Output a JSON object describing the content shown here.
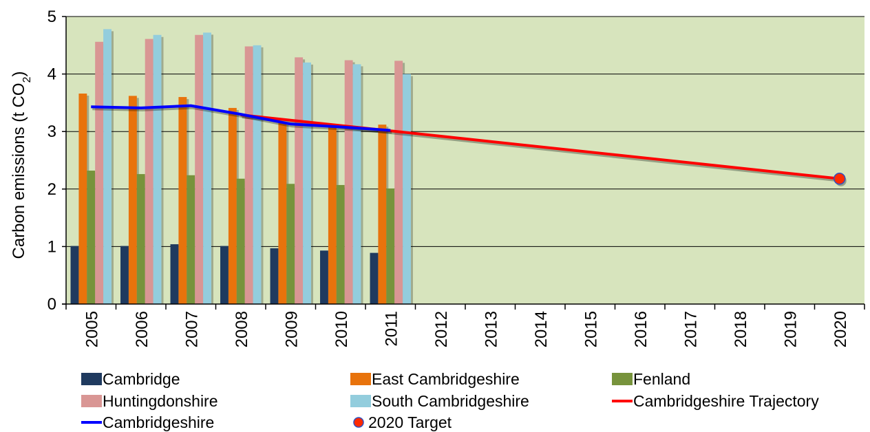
{
  "chart_data": {
    "type": "bar",
    "title": "",
    "xlabel": "",
    "ylabel": {
      "prefix": "Carbon emissions (t CO",
      "sub": "2",
      "suffix": ")"
    },
    "ylim": [
      0,
      5
    ],
    "yticks": [
      0,
      1,
      2,
      3,
      4,
      5
    ],
    "grid": "horizontal",
    "legend_position": "bottom",
    "categories": [
      "2005",
      "2006",
      "2007",
      "2008",
      "2009",
      "2010",
      "2011",
      "2012",
      "2013",
      "2014",
      "2015",
      "2016",
      "2017",
      "2018",
      "2019",
      "2020"
    ],
    "bar_series": [
      {
        "name": "Cambridge",
        "color": "#1f3a5f",
        "values": [
          1.01,
          1.01,
          1.04,
          1.01,
          0.97,
          0.93,
          0.89,
          null,
          null,
          null,
          null,
          null,
          null,
          null,
          null,
          null
        ]
      },
      {
        "name": "East Cambridgeshire",
        "color": "#e8730c",
        "values": [
          3.66,
          3.62,
          3.6,
          3.41,
          3.15,
          3.07,
          3.12,
          null,
          null,
          null,
          null,
          null,
          null,
          null,
          null,
          null
        ]
      },
      {
        "name": "Fenland",
        "color": "#77933c",
        "values": [
          2.32,
          2.26,
          2.24,
          2.18,
          2.09,
          2.07,
          2.01,
          null,
          null,
          null,
          null,
          null,
          null,
          null,
          null,
          null
        ]
      },
      {
        "name": "Huntingdonshire",
        "color": "#d99694",
        "values": [
          4.56,
          4.61,
          4.68,
          4.48,
          4.29,
          4.24,
          4.23,
          null,
          null,
          null,
          null,
          null,
          null,
          null,
          null,
          null
        ]
      },
      {
        "name": "South Cambridgeshire",
        "color": "#93cddd",
        "values": [
          4.78,
          4.68,
          4.72,
          4.5,
          4.2,
          4.17,
          4.0,
          null,
          null,
          null,
          null,
          null,
          null,
          null,
          null,
          null
        ]
      }
    ],
    "line_series": [
      {
        "name": "Cambridgeshire Trajectory",
        "color": "#ff0000",
        "x": [
          "2008",
          "2020"
        ],
        "values": [
          3.29,
          2.18
        ]
      },
      {
        "name": "Cambridgeshire",
        "color": "#0000ff",
        "x": [
          "2005",
          "2006",
          "2007",
          "2008",
          "2009",
          "2010",
          "2011"
        ],
        "values": [
          3.43,
          3.41,
          3.45,
          3.3,
          3.13,
          3.08,
          3.02
        ]
      }
    ],
    "marker_series": [
      {
        "name": "2020 Target",
        "color": "#ff2a00",
        "x": "2020",
        "value": 2.18
      }
    ],
    "legend": [
      {
        "name": "Cambridge",
        "kind": "bar",
        "color": "#1f3a5f"
      },
      {
        "name": "East Cambridgeshire",
        "kind": "bar",
        "color": "#e8730c"
      },
      {
        "name": "Fenland",
        "kind": "bar",
        "color": "#77933c"
      },
      {
        "name": "Huntingdonshire",
        "kind": "bar",
        "color": "#d99694"
      },
      {
        "name": "South Cambridgeshire",
        "kind": "bar",
        "color": "#93cddd"
      },
      {
        "name": "Cambridgeshire Trajectory",
        "kind": "line",
        "color": "#ff0000"
      },
      {
        "name": "Cambridgeshire",
        "kind": "line",
        "color": "#0000ff"
      },
      {
        "name": "2020 Target",
        "kind": "marker",
        "color": "#ff2a00"
      }
    ],
    "colors": {
      "plot_background": "#d7e4bd",
      "grid": "#000000"
    }
  }
}
